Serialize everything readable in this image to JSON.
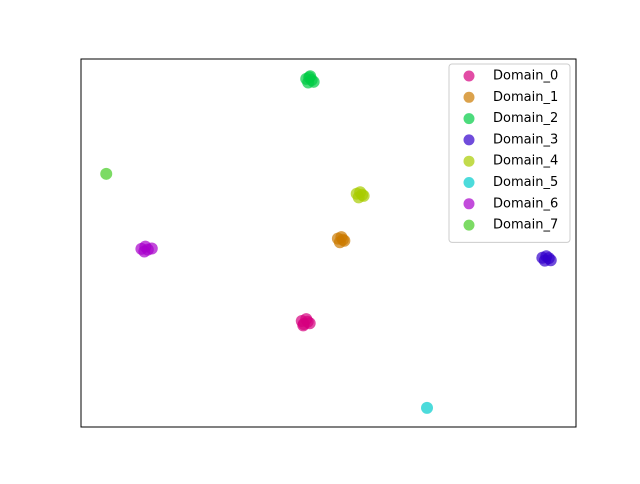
{
  "chart_data": {
    "type": "scatter",
    "legend": "upper right",
    "opacity": 0.7,
    "xlim": [
      0,
      100
    ],
    "ylim": [
      0,
      100
    ],
    "series": [
      {
        "name": "Domain_0",
        "color": "#d6007f",
        "x": [
          44.6,
          45.5,
          46.2,
          44.9,
          45.8,
          45.0
        ],
        "y": [
          28.8,
          29.3,
          28.2,
          27.6,
          28.6,
          28.0
        ]
      },
      {
        "name": "Domain_1",
        "color": "#cc7a00",
        "x": [
          51.9,
          52.6,
          53.2,
          52.3,
          52.9
        ],
        "y": [
          51.2,
          51.6,
          50.6,
          50.2,
          50.9
        ]
      },
      {
        "name": "Domain_2",
        "color": "#00cc44",
        "x": [
          45.5,
          46.3,
          47.0,
          45.9,
          46.6,
          46.1
        ],
        "y": [
          94.6,
          95.3,
          93.8,
          93.6,
          94.3,
          95.0
        ]
      },
      {
        "name": "Domain_3",
        "color": "#3300cc",
        "x": [
          93.2,
          94.0,
          94.9,
          93.7,
          94.5
        ],
        "y": [
          46.0,
          46.4,
          45.3,
          45.2,
          45.9
        ]
      },
      {
        "name": "Domain_4",
        "color": "#a8cc00",
        "x": [
          55.7,
          56.4,
          57.1,
          56.1,
          56.8
        ],
        "y": [
          63.4,
          63.8,
          62.8,
          62.4,
          63.1
        ]
      },
      {
        "name": "Domain_5",
        "color": "#00cccc",
        "x": [
          69.9
        ],
        "y": [
          5.2
        ]
      },
      {
        "name": "Domain_6",
        "color": "#a800cc",
        "x": [
          12.2,
          13.0,
          14.3,
          12.8,
          13.5
        ],
        "y": [
          48.4,
          49.0,
          48.5,
          47.7,
          48.2
        ]
      },
      {
        "name": "Domain_7",
        "color": "#44cc22",
        "x": [
          5.1
        ],
        "y": [
          68.8
        ]
      }
    ]
  }
}
